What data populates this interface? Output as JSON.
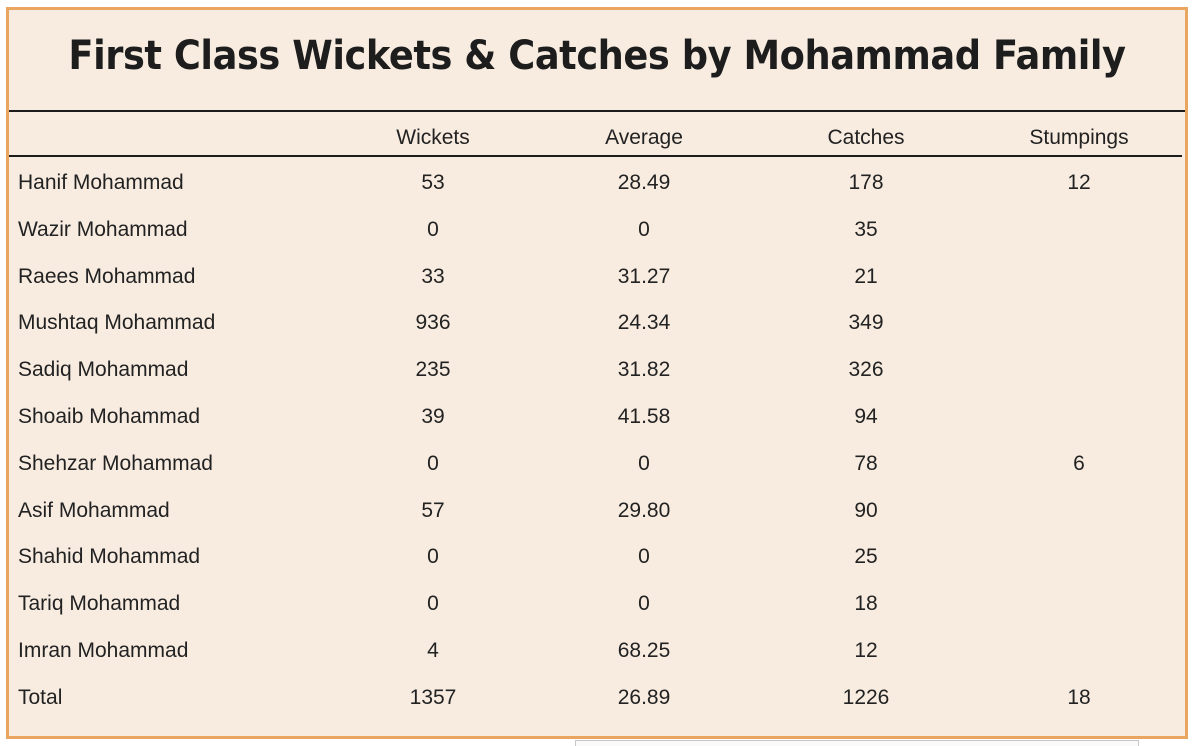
{
  "chart_data": {
    "type": "table",
    "title": "First Class Wickets & Catches by Mohammad Family",
    "columns": [
      "",
      "Wickets",
      "Average",
      "Catches",
      "Stumpings"
    ],
    "rows": [
      {
        "name": "Hanif Mohammad",
        "wickets": "53",
        "average": "28.49",
        "catches": "178",
        "stumpings": "12"
      },
      {
        "name": "Wazir Mohammad",
        "wickets": "0",
        "average": "0",
        "catches": "35",
        "stumpings": ""
      },
      {
        "name": "Raees Mohammad",
        "wickets": "33",
        "average": "31.27",
        "catches": "21",
        "stumpings": ""
      },
      {
        "name": "Mushtaq Mohammad",
        "wickets": "936",
        "average": "24.34",
        "catches": "349",
        "stumpings": ""
      },
      {
        "name": "Sadiq Mohammad",
        "wickets": "235",
        "average": "31.82",
        "catches": "326",
        "stumpings": ""
      },
      {
        "name": "Shoaib Mohammad",
        "wickets": "39",
        "average": "41.58",
        "catches": "94",
        "stumpings": ""
      },
      {
        "name": "Shehzar Mohammad",
        "wickets": "0",
        "average": "0",
        "catches": "78",
        "stumpings": "6"
      },
      {
        "name": "Asif Mohammad",
        "wickets": "57",
        "average": "29.80",
        "catches": "90",
        "stumpings": ""
      },
      {
        "name": "Shahid Mohammad",
        "wickets": "0",
        "average": "0",
        "catches": "25",
        "stumpings": ""
      },
      {
        "name": "Tariq Mohammad",
        "wickets": "0",
        "average": "0",
        "catches": "18",
        "stumpings": ""
      },
      {
        "name": "Imran Mohammad",
        "wickets": "4",
        "average": "68.25",
        "catches": "12",
        "stumpings": ""
      },
      {
        "name": "Total",
        "wickets": "1357",
        "average": "26.89",
        "catches": "1226",
        "stumpings": "18"
      }
    ]
  },
  "colors": {
    "background": "#f8ece1",
    "border": "#e8a661",
    "text": "#222222",
    "rule": "#1c1c1c"
  }
}
